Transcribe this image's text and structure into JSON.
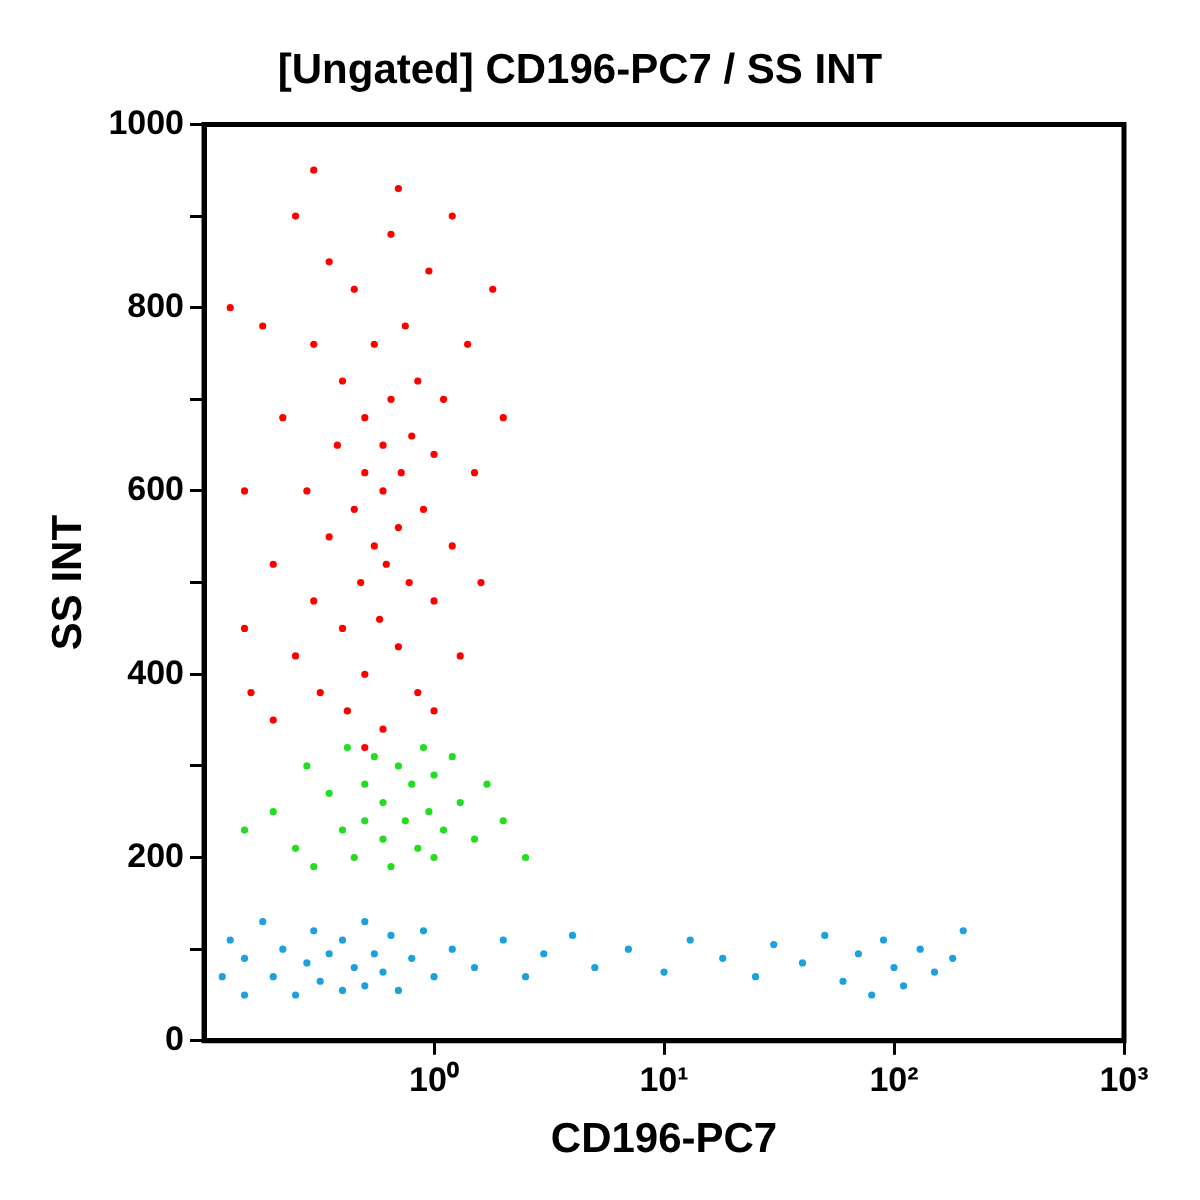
{
  "chart_data": {
    "type": "scatter",
    "title": "[Ungated] CD196-PC7 / SS INT",
    "xlabel": "CD196-PC7",
    "ylabel": "SS INT",
    "log": "x",
    "grid": false,
    "legend": false,
    "marker": "circle",
    "xlim": [
      0.1,
      1000
    ],
    "xticks": [
      {
        "value": 1,
        "label": "10⁰"
      },
      {
        "value": 10,
        "label": "10¹"
      },
      {
        "value": 100,
        "label": "10²"
      },
      {
        "value": 1000,
        "label": "10³"
      }
    ],
    "ylim": [
      0,
      1000
    ],
    "yticks": [
      0,
      {
        "value": 100,
        "label": null
      },
      200,
      {
        "value": 300,
        "label": null
      },
      400,
      {
        "value": 500,
        "label": null
      },
      600,
      {
        "value": 700,
        "label": null
      },
      800,
      {
        "value": 900,
        "label": null
      },
      1000
    ],
    "series": [
      {
        "color": "#ff0000",
        "x": [
          0.15,
          0.15,
          0.18,
          0.2,
          0.2,
          0.22,
          0.25,
          0.25,
          0.28,
          0.3,
          0.3,
          0.32,
          0.35,
          0.35,
          0.38,
          0.4,
          0.4,
          0.42,
          0.45,
          0.45,
          0.48,
          0.5,
          0.5,
          0.5,
          0.55,
          0.55,
          0.58,
          0.6,
          0.6,
          0.6,
          0.62,
          0.65,
          0.65,
          0.7,
          0.7,
          0.72,
          0.75,
          0.78,
          0.8,
          0.85,
          0.85,
          0.9,
          0.95,
          1.0,
          1.0,
          1.1,
          1.2,
          1.2,
          1.3,
          1.4,
          1.5,
          1.6,
          1.8,
          2.0,
          0.3,
          0.7,
          0.5,
          0.13,
          0.16,
          1.0
        ],
        "values": [
          600,
          450,
          780,
          350,
          520,
          680,
          900,
          420,
          600,
          760,
          480,
          380,
          550,
          850,
          650,
          450,
          720,
          360,
          580,
          820,
          500,
          620,
          680,
          400,
          540,
          760,
          460,
          600,
          650,
          340,
          520,
          700,
          880,
          560,
          430,
          620,
          780,
          500,
          660,
          380,
          720,
          580,
          840,
          480,
          640,
          700,
          540,
          900,
          420,
          760,
          620,
          500,
          820,
          680,
          950,
          930,
          320,
          800,
          380,
          360
        ]
      },
      {
        "color": "#22dd22",
        "x": [
          0.2,
          0.25,
          0.28,
          0.3,
          0.35,
          0.4,
          0.42,
          0.45,
          0.5,
          0.5,
          0.55,
          0.6,
          0.6,
          0.65,
          0.7,
          0.75,
          0.8,
          0.85,
          0.9,
          0.95,
          1.0,
          1.0,
          1.1,
          1.2,
          1.3,
          1.5,
          1.7,
          2.0,
          0.15,
          2.5
        ],
        "values": [
          250,
          210,
          300,
          190,
          270,
          230,
          320,
          200,
          280,
          240,
          310,
          220,
          260,
          190,
          300,
          240,
          280,
          210,
          320,
          250,
          200,
          290,
          230,
          310,
          260,
          220,
          280,
          240,
          230,
          200
        ]
      },
      {
        "color": "#1ea0dc",
        "x": [
          0.12,
          0.13,
          0.15,
          0.15,
          0.18,
          0.2,
          0.22,
          0.25,
          0.28,
          0.3,
          0.32,
          0.35,
          0.4,
          0.4,
          0.45,
          0.5,
          0.5,
          0.55,
          0.6,
          0.65,
          0.7,
          0.8,
          0.9,
          1.0,
          1.2,
          1.5,
          2,
          2.5,
          3,
          4,
          5,
          7,
          10,
          13,
          18,
          25,
          30,
          40,
          50,
          60,
          70,
          80,
          90,
          100,
          110,
          130,
          150,
          180,
          200
        ],
        "values": [
          70,
          110,
          50,
          90,
          130,
          70,
          100,
          50,
          85,
          120,
          65,
          95,
          55,
          110,
          80,
          130,
          60,
          95,
          75,
          115,
          55,
          90,
          120,
          70,
          100,
          80,
          110,
          70,
          95,
          115,
          80,
          100,
          75,
          110,
          90,
          70,
          105,
          85,
          115,
          65,
          95,
          50,
          110,
          80,
          60,
          100,
          75,
          90,
          120
        ]
      }
    ]
  }
}
